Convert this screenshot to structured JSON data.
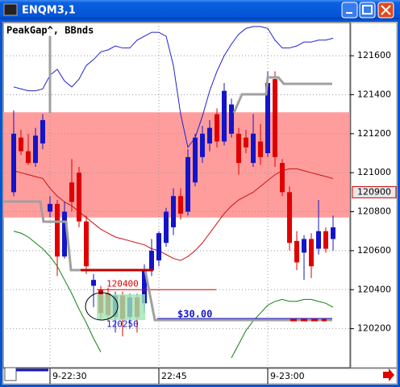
{
  "window": {
    "title": "ENQM3,1"
  },
  "chart_data": {
    "type": "candlestick",
    "title": "PeakGap^, BBnds",
    "categories": [
      null,
      null,
      null,
      null,
      null,
      "9-22:30",
      null,
      null,
      null,
      null,
      null,
      null,
      null,
      null,
      null,
      null,
      null,
      null,
      null,
      null,
      "22:45",
      null,
      null,
      null,
      null,
      null,
      null,
      null,
      null,
      null,
      null,
      null,
      null,
      null,
      null,
      "9-23:00",
      null,
      null,
      null,
      null,
      null,
      null,
      null,
      null,
      null
    ],
    "open": [
      120900,
      121180,
      121110,
      121050,
      121150,
      120800,
      120840,
      120570,
      120950,
      121000,
      120750,
      120420,
      120400,
      120380,
      120260,
      120370,
      120260,
      120360,
      120330,
      120500,
      120550,
      120640,
      120720,
      120880,
      120800,
      120950,
      121080,
      121150,
      121300,
      121160,
      121200,
      121200,
      121180,
      121050,
      121160,
      121100,
      121480,
      121050,
      120900,
      120650,
      120590,
      120660,
      120610,
      120700,
      120660
    ],
    "high": [
      121320,
      121220,
      121200,
      121230,
      121300,
      120880,
      120860,
      120850,
      121070,
      121030,
      120780,
      120480,
      120420,
      120410,
      120390,
      120390,
      120380,
      120380,
      120530,
      120660,
      120700,
      120820,
      120920,
      120920,
      121120,
      121200,
      121240,
      121270,
      121330,
      121460,
      121380,
      121230,
      121220,
      121300,
      121250,
      121520,
      121520,
      121070,
      120930,
      120700,
      120680,
      120690,
      120860,
      120720,
      120780
    ],
    "low": [
      120880,
      121090,
      121040,
      121030,
      121120,
      120770,
      120470,
      120560,
      120800,
      120720,
      120480,
      120310,
      120250,
      120240,
      120180,
      120160,
      120200,
      120180,
      120280,
      120470,
      120520,
      120620,
      120680,
      120760,
      120780,
      120930,
      121050,
      121110,
      121130,
      121140,
      121180,
      120990,
      121100,
      121030,
      121040,
      121080,
      121030,
      120880,
      120600,
      120500,
      120450,
      120460,
      120580,
      120590,
      120600
    ],
    "close": [
      121200,
      121110,
      121050,
      121190,
      121270,
      120840,
      120570,
      120800,
      120850,
      120750,
      120520,
      120450,
      120280,
      120270,
      120370,
      120250,
      120360,
      120260,
      120500,
      120600,
      120690,
      120800,
      120880,
      120790,
      121080,
      121180,
      121200,
      121230,
      121160,
      121420,
      121350,
      121050,
      121130,
      121200,
      121080,
      121460,
      121080,
      120900,
      120640,
      120540,
      120660,
      120520,
      120700,
      120610,
      120720
    ],
    "up_color": "#1414c8",
    "down_color": "#e00000",
    "series": [
      {
        "color": "#2020d0",
        "values": [
          121440,
          121430,
          121420,
          121420,
          121430,
          121500,
          121530,
          121470,
          121440,
          121480,
          121550,
          121580,
          121620,
          121630,
          121650,
          121640,
          121640,
          121680,
          121700,
          121720,
          121720,
          121700,
          121550,
          121300,
          121130,
          121180,
          121290,
          121420,
          121520,
          121600,
          121660,
          121710,
          121740,
          121750,
          121750,
          121740,
          121680,
          121640,
          121640,
          121650,
          121670,
          121670,
          121680,
          121680,
          121690
        ]
      },
      {
        "color": "#d01010",
        "values": [
          121010,
          121000,
          120990,
          120980,
          120970,
          120920,
          120880,
          120850,
          120830,
          120800,
          120770,
          120740,
          120710,
          120690,
          120670,
          120660,
          120650,
          120640,
          120630,
          120610,
          120600,
          120580,
          120560,
          120550,
          120570,
          120600,
          120640,
          120690,
          120740,
          120790,
          120830,
          120860,
          120880,
          120900,
          120930,
          120960,
          120990,
          121010,
          121020,
          121020,
          121010,
          121000,
          120990,
          120980,
          120970
        ]
      },
      {
        "color": "#108010",
        "values": [
          120700,
          120690,
          120670,
          120640,
          120610,
          120570,
          120520,
          120450,
          120380,
          120300,
          120230,
          120150,
          120080,
          null,
          null,
          null,
          null,
          null,
          null,
          null,
          null,
          null,
          null,
          null,
          null,
          null,
          null,
          null,
          null,
          null,
          120050,
          120120,
          120190,
          120240,
          120280,
          120320,
          120340,
          120350,
          120340,
          120340,
          120350,
          120350,
          120340,
          120330,
          120310
        ]
      }
    ],
    "zone": {
      "from": 120770,
      "to": 121310,
      "color": "#ff8c8c"
    },
    "levels": [
      {
        "text": "120400",
        "value": 120400,
        "color": "#e00000"
      },
      {
        "text": "120250",
        "value": 120250,
        "color": "#1414c8"
      }
    ],
    "profit_label": "$30.00",
    "price_marker": 120900,
    "ylim": [
      120000,
      121770
    ],
    "yticks": [
      120200,
      120400,
      120600,
      120800,
      121000,
      121200,
      121400,
      121600
    ],
    "grid": true
  }
}
